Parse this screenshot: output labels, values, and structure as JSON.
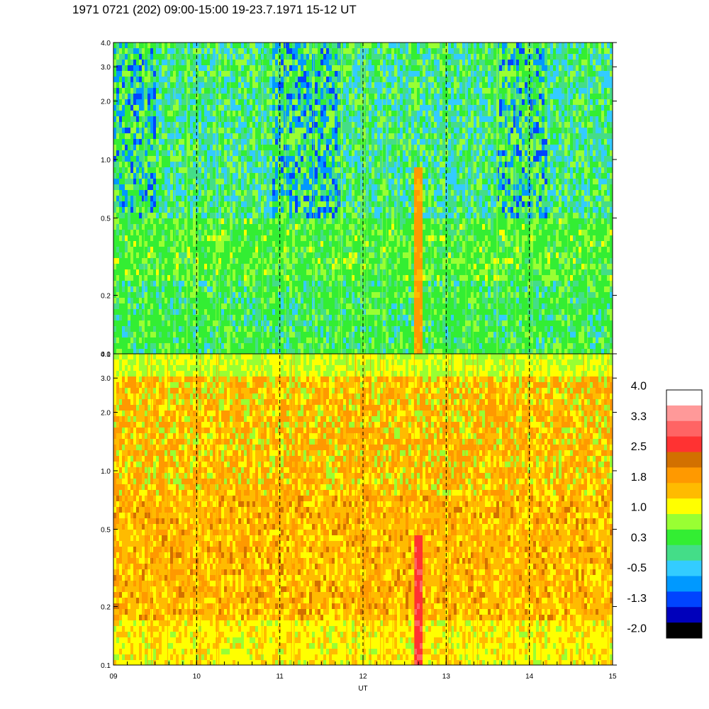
{
  "title": "1971 0721 (202) 09:00-15:00 19-23.7.1971  15-12 UT",
  "chart_data": {
    "type": "heatmap",
    "xlabel": "UT",
    "x_ticks": [
      "09",
      "10",
      "11",
      "12",
      "13",
      "14",
      "15"
    ],
    "x_tick_values": [
      9,
      10,
      11,
      12,
      13,
      14,
      15
    ],
    "xlim": [
      9,
      15
    ],
    "y_scale": "log",
    "vertical_dashed_lines_at": [
      10,
      11,
      12,
      13,
      14
    ],
    "panels": [
      {
        "id": "upper",
        "ylim": [
          0.1,
          4.0
        ],
        "y_ticks": [
          "4.0",
          "3.0",
          "2.0",
          "1.0",
          "0.5",
          "0.2",
          "0.1"
        ],
        "y_tick_values": [
          4.0,
          3.0,
          2.0,
          1.0,
          0.5,
          0.2,
          0.1
        ],
        "dominant_levels": "green / yellow-green, blue patches above 1.0",
        "features": [
          {
            "at": 12.65,
            "description": "orange vertical band below ~0.7"
          }
        ]
      },
      {
        "id": "lower",
        "ylim": [
          0.1,
          4.0
        ],
        "y_ticks": [
          "4.0",
          "3.0",
          "2.0",
          "1.0",
          "0.5",
          "0.2",
          "0.1"
        ],
        "y_tick_values": [
          4.0,
          3.0,
          2.0,
          1.0,
          0.5,
          0.2,
          0.1
        ],
        "dominant_levels": "yellow / orange",
        "features": [
          {
            "at": 12.65,
            "description": "red vertical band below ~0.4"
          }
        ]
      }
    ],
    "colorbar": {
      "labels": [
        "4.0",
        "3.3",
        "2.5",
        "1.8",
        "1.0",
        "0.3",
        "-0.5",
        "-1.3",
        "-2.0"
      ],
      "colors": [
        "#ffffff",
        "#ff9999",
        "#ff6464",
        "#ff3232",
        "#d27000",
        "#ff9900",
        "#ffbb00",
        "#ffff00",
        "#99ff33",
        "#33ee33",
        "#44dd88",
        "#33ccff",
        "#0099ff",
        "#0044ff",
        "#0000bb",
        "#000000"
      ]
    }
  }
}
